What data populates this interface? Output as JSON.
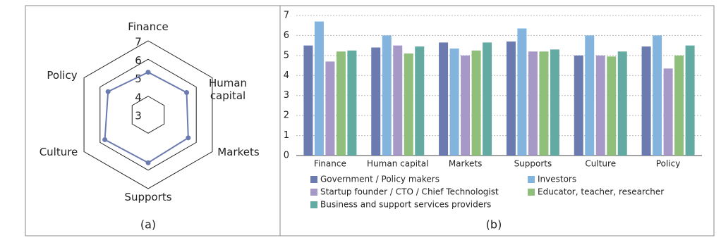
{
  "chart_data": [
    {
      "type": "radar",
      "label": "(a)",
      "categories": [
        "Finance",
        "Human capital",
        "Markets",
        "Supports",
        "Culture",
        "Policy"
      ],
      "values": [
        5.3,
        5.4,
        5.5,
        5.6,
        5.7,
        5.5
      ],
      "color": "#6b7bb0",
      "rlim": [
        3,
        7
      ],
      "rticks": [
        3,
        4,
        5,
        6,
        7
      ],
      "grid_rings": [
        4,
        6,
        7
      ]
    },
    {
      "type": "bar",
      "label": "(b)",
      "categories": [
        "Finance",
        "Human capital",
        "Markets",
        "Supports",
        "Culture",
        "Policy"
      ],
      "series": [
        {
          "name": "Government / Policy makers",
          "color": "#6b7bb0",
          "values": [
            5.5,
            5.4,
            5.65,
            5.7,
            5.0,
            5.45
          ]
        },
        {
          "name": "Investors",
          "color": "#82b4de",
          "values": [
            6.7,
            6.0,
            5.35,
            6.35,
            6.0,
            6.0
          ]
        },
        {
          "name": "Startup founder / CTO / Chief Technologist",
          "color": "#a699c8",
          "values": [
            4.7,
            5.5,
            5.0,
            5.2,
            5.0,
            4.35
          ]
        },
        {
          "name": "Educator, teacher, researcher",
          "color": "#90bf7c",
          "values": [
            5.2,
            5.1,
            5.25,
            5.2,
            4.95,
            5.0
          ]
        },
        {
          "name": "Business and support services providers",
          "color": "#62aaa2",
          "values": [
            5.25,
            5.45,
            5.65,
            5.3,
            5.2,
            5.5
          ]
        }
      ],
      "ylim": [
        0,
        7
      ],
      "yticks": [
        0,
        1,
        2,
        3,
        4,
        5,
        6,
        7
      ],
      "grid": true
    }
  ]
}
